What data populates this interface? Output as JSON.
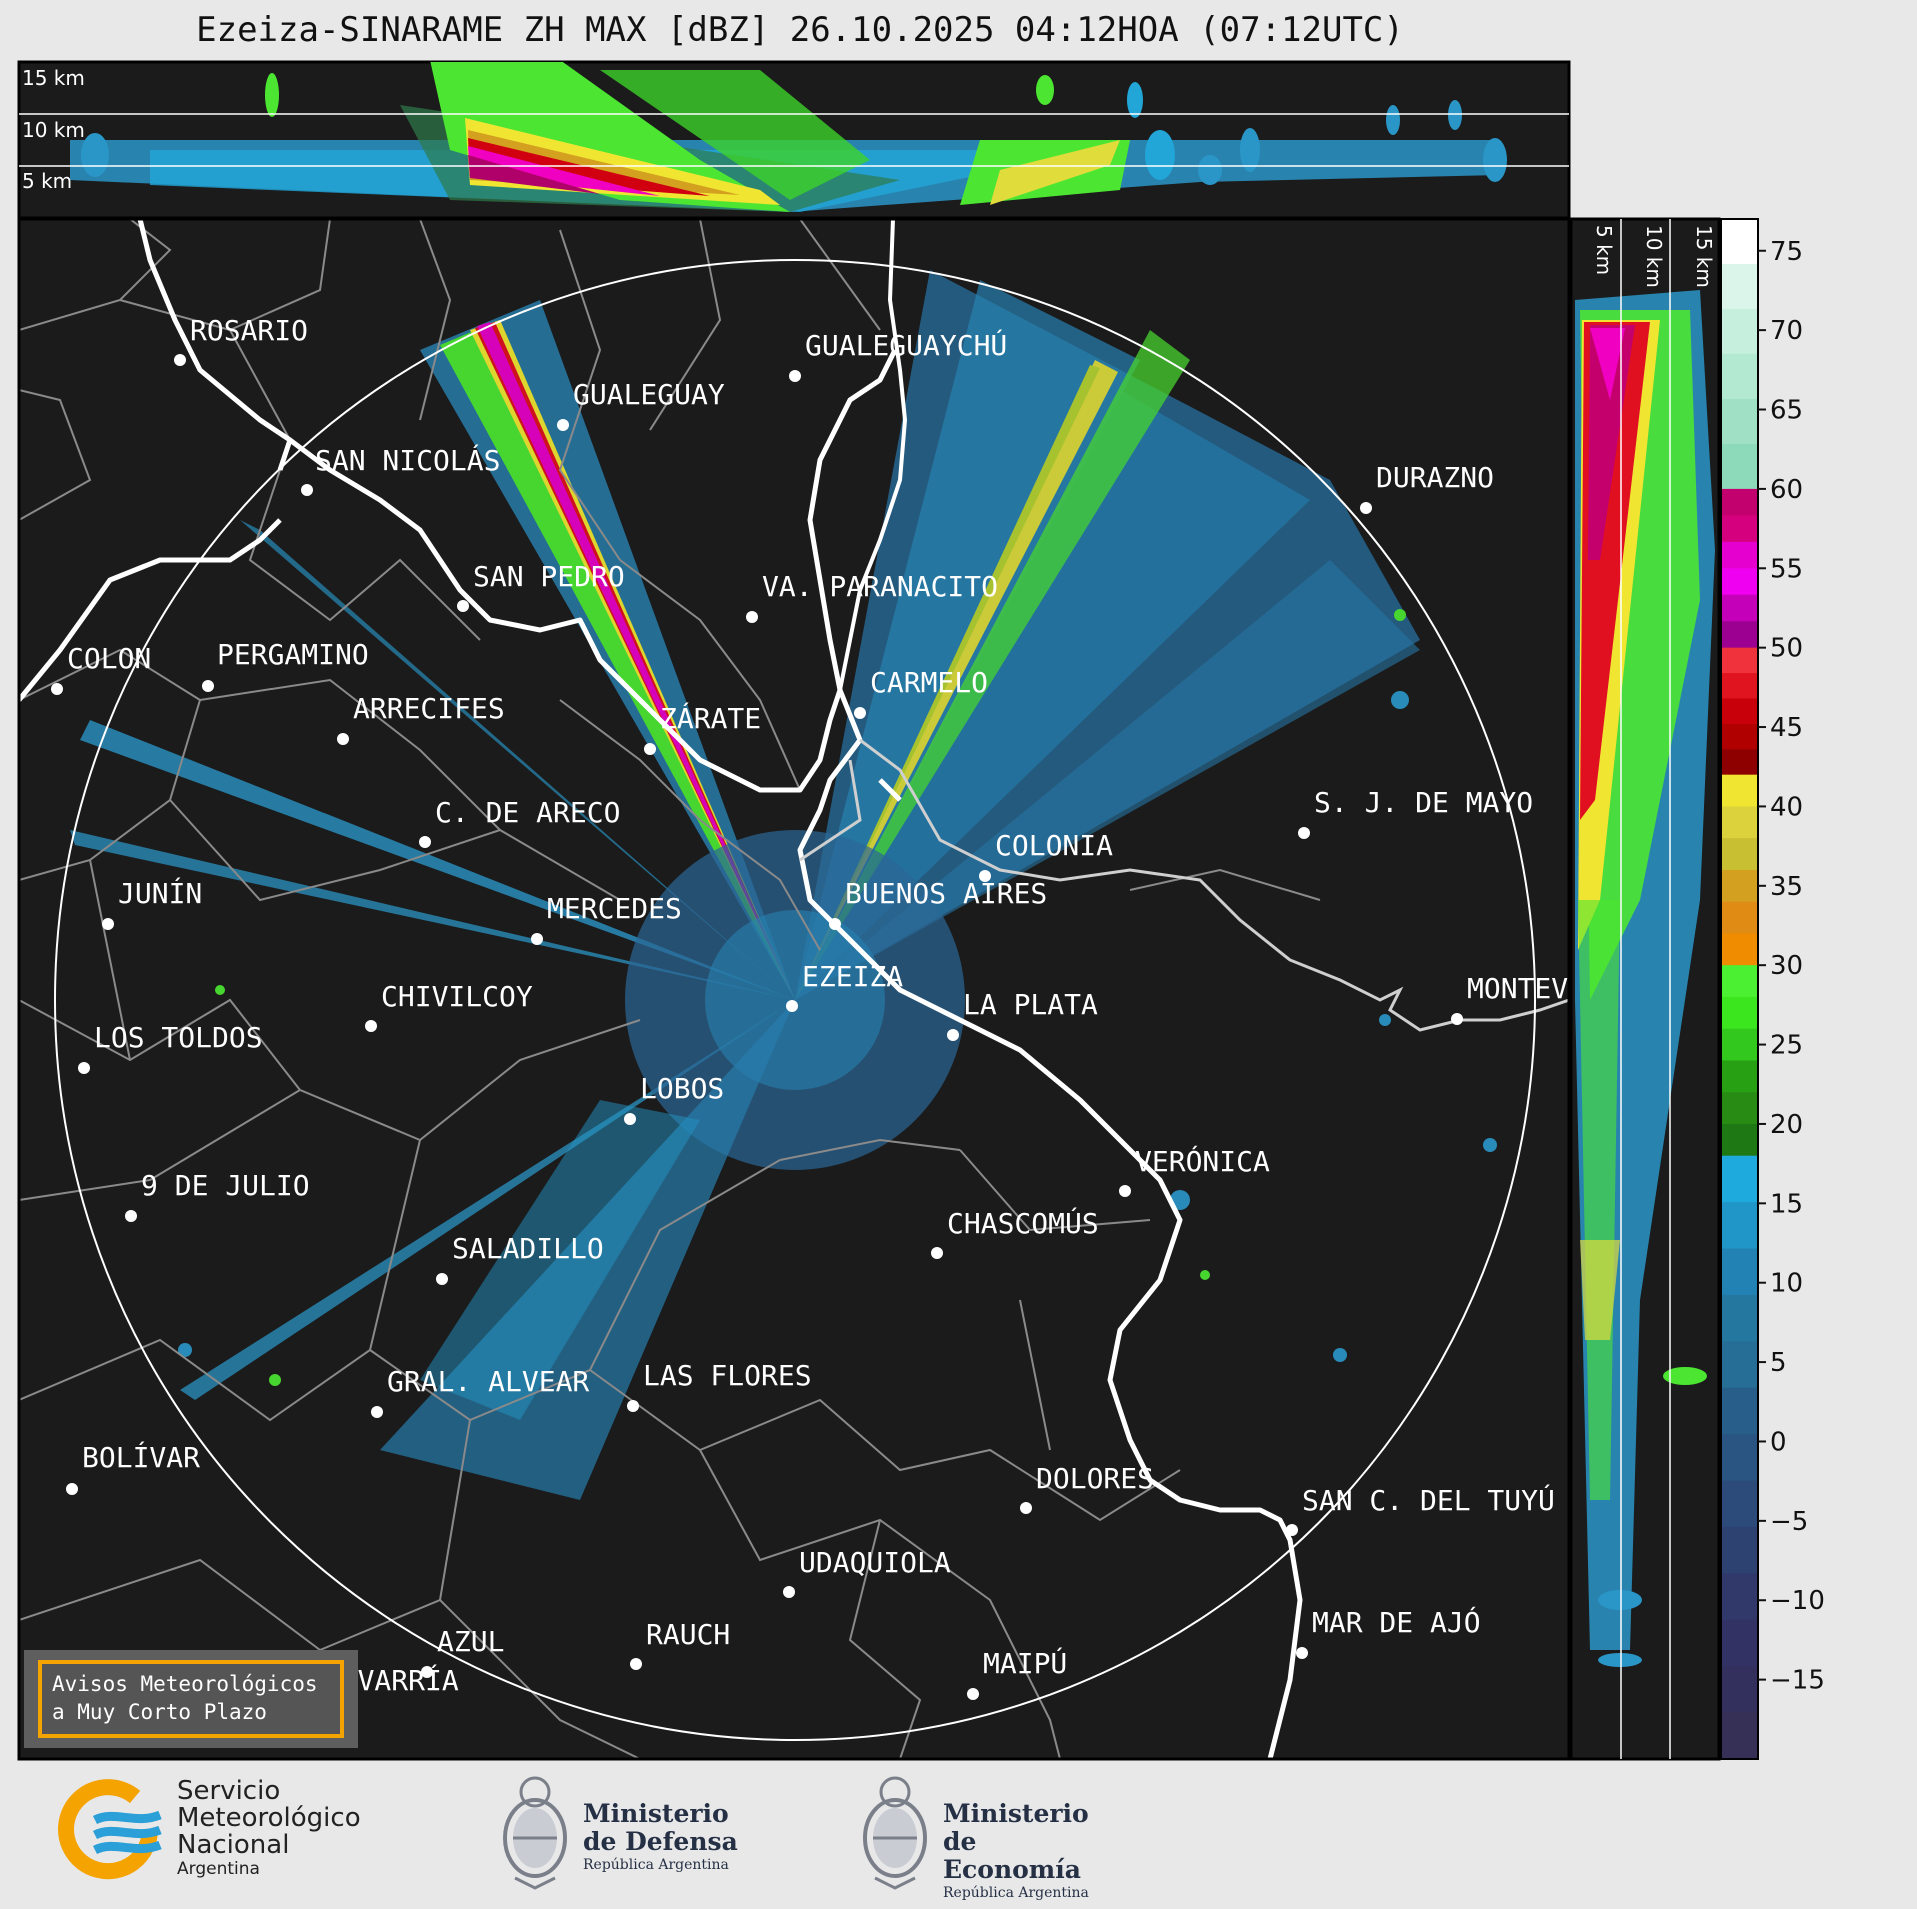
{
  "title": "Ezeiza-SINARAME ZH MAX [dBZ] 26.10.2025 04:12HOA (07:12UTC)",
  "top_panel": {
    "height_labels": [
      "15 km",
      "10 km",
      "5 km"
    ]
  },
  "side_panel": {
    "height_labels": [
      "5 km",
      "10 km",
      "15 km"
    ]
  },
  "colorbar": {
    "ticks": [
      "75",
      "70",
      "65",
      "60",
      "55",
      "50",
      "45",
      "40",
      "35",
      "30",
      "25",
      "20",
      "15",
      "10",
      "5",
      "0",
      "−5",
      "−10",
      "−15"
    ],
    "bands": [
      {
        "from": 60,
        "to": 77,
        "colors": [
          "#ffffff",
          "#dcf5ea",
          "#c6efdd",
          "#b3e8d1",
          "#a0e1c6",
          "#8ddabb"
        ]
      },
      {
        "from": 50,
        "to": 60,
        "colors": [
          "#c2006e",
          "#d4007e",
          "#e600d0",
          "#f000f0",
          "#c400b8",
          "#9c0090"
        ]
      },
      {
        "from": 42,
        "to": 50,
        "colors": [
          "#f0323c",
          "#e0141e",
          "#c8000a",
          "#b00000",
          "#8e0000"
        ]
      },
      {
        "from": 30,
        "to": 42,
        "colors": [
          "#f0e632",
          "#dcd23c",
          "#c8c032",
          "#d4a020",
          "#e08c14",
          "#f08c00"
        ]
      },
      {
        "from": 18,
        "to": 30,
        "colors": [
          "#4cf032",
          "#3ce61e",
          "#32c81e",
          "#28a014",
          "#288c14",
          "#1e7814"
        ]
      },
      {
        "from": -20,
        "to": 18,
        "colors": [
          "#1eaadc",
          "#2096c8",
          "#2282b4",
          "#2478a0",
          "#266e96",
          "#285f8a",
          "#2a5582",
          "#2c4b7a",
          "#2e4272",
          "#30396a",
          "#323264",
          "#34305e",
          "#363056"
        ]
      }
    ],
    "range": [
      -20,
      77
    ]
  },
  "cities": [
    {
      "name": "ROSARIO"
    },
    {
      "name": "GUALEGUAYCHÚ"
    },
    {
      "name": "GUALEGUAY"
    },
    {
      "name": "SAN NICOLÁS"
    },
    {
      "name": "DURAZNO"
    },
    {
      "name": "SAN PEDRO"
    },
    {
      "name": "VA. PARANACITO"
    },
    {
      "name": "COLON"
    },
    {
      "name": "PERGAMINO"
    },
    {
      "name": "CARMELO"
    },
    {
      "name": "ARRECIFES"
    },
    {
      "name": "ZÁRATE"
    },
    {
      "name": "S. J. DE MAYO"
    },
    {
      "name": "C. DE ARECO"
    },
    {
      "name": "COLONIA"
    },
    {
      "name": "JUNÍN"
    },
    {
      "name": "BUENOS AIRES"
    },
    {
      "name": "MERCEDES"
    },
    {
      "name": "EZEIZA"
    },
    {
      "name": "MONTEV"
    },
    {
      "name": "CHIVILCOY"
    },
    {
      "name": "LA PLATA"
    },
    {
      "name": "LOS TOLDOS"
    },
    {
      "name": "LOBOS"
    },
    {
      "name": "VERÓNICA"
    },
    {
      "name": "9 DE JULIO"
    },
    {
      "name": "CHASCOMÚS"
    },
    {
      "name": "SALADILLO"
    },
    {
      "name": "GRAL. ALVEAR"
    },
    {
      "name": "LAS FLORES"
    },
    {
      "name": "BOLÍVAR"
    },
    {
      "name": "DOLORES"
    },
    {
      "name": "SAN C. DEL TUYÚ"
    },
    {
      "name": "UDAQUIOLA"
    },
    {
      "name": "RAUCH"
    },
    {
      "name": "MAR DE AJÓ"
    },
    {
      "name": "AZUL"
    },
    {
      "name": "OLAVARRÍA"
    },
    {
      "name": "MAIPÚ"
    }
  ],
  "warning_box": {
    "line1": "Avisos Meteorológicos",
    "line2": "a Muy Corto Plazo"
  },
  "logos": {
    "smn": {
      "line1": "Servicio",
      "line2": "Meteorológico",
      "line3": "Nacional",
      "line4": "Argentina"
    },
    "defensa": {
      "line1": "Ministerio",
      "line2": "de Defensa",
      "line3": "República Argentina"
    },
    "economia": {
      "line1": "Ministerio",
      "line2": "de Economía",
      "line3": "República Argentina"
    }
  },
  "colors": {
    "map_background": "#1b1b1b",
    "coast": "#ffffff",
    "border": "#9a9a9a",
    "range_ring": "#ffffff",
    "accent_warning": "#f5a300"
  }
}
